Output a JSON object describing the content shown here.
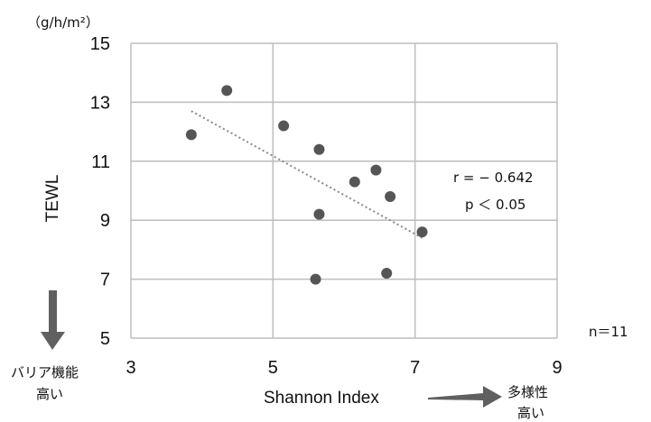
{
  "chart_data": {
    "type": "scatter",
    "ylabel": "TEWL",
    "y_unit": "（g/h/m²）",
    "xlabel": "Shannon Index",
    "xlim": [
      3,
      9
    ],
    "ylim": [
      5,
      15
    ],
    "x_ticks": [
      "3",
      "5",
      "7",
      "9"
    ],
    "y_ticks": [
      "5",
      "7",
      "9",
      "11",
      "13",
      "15"
    ],
    "grid": true,
    "points": [
      {
        "x": 3.85,
        "y": 11.9
      },
      {
        "x": 4.35,
        "y": 13.4
      },
      {
        "x": 5.15,
        "y": 12.2
      },
      {
        "x": 5.65,
        "y": 11.4
      },
      {
        "x": 5.65,
        "y": 9.2
      },
      {
        "x": 5.6,
        "y": 7.0
      },
      {
        "x": 6.15,
        "y": 10.3
      },
      {
        "x": 6.45,
        "y": 10.7
      },
      {
        "x": 6.65,
        "y": 9.8
      },
      {
        "x": 6.6,
        "y": 7.2
      },
      {
        "x": 7.1,
        "y": 8.6
      }
    ],
    "trendline": {
      "x1": 3.85,
      "y1": 12.7,
      "x2": 7.1,
      "y2": 8.4
    },
    "stats": {
      "r": "r = − 0.642",
      "p": "p ＜ 0.05",
      "n": "n＝11"
    },
    "annotations": {
      "y_arrow_label_line1": "バリア機能",
      "y_arrow_label_line2": "高い",
      "x_arrow_label_line1": "多様性",
      "x_arrow_label_line2": "高い"
    }
  },
  "colors": {
    "point": "#555555",
    "grid": "#bdbdbd",
    "trend": "#888888",
    "arrow": "#606060"
  }
}
